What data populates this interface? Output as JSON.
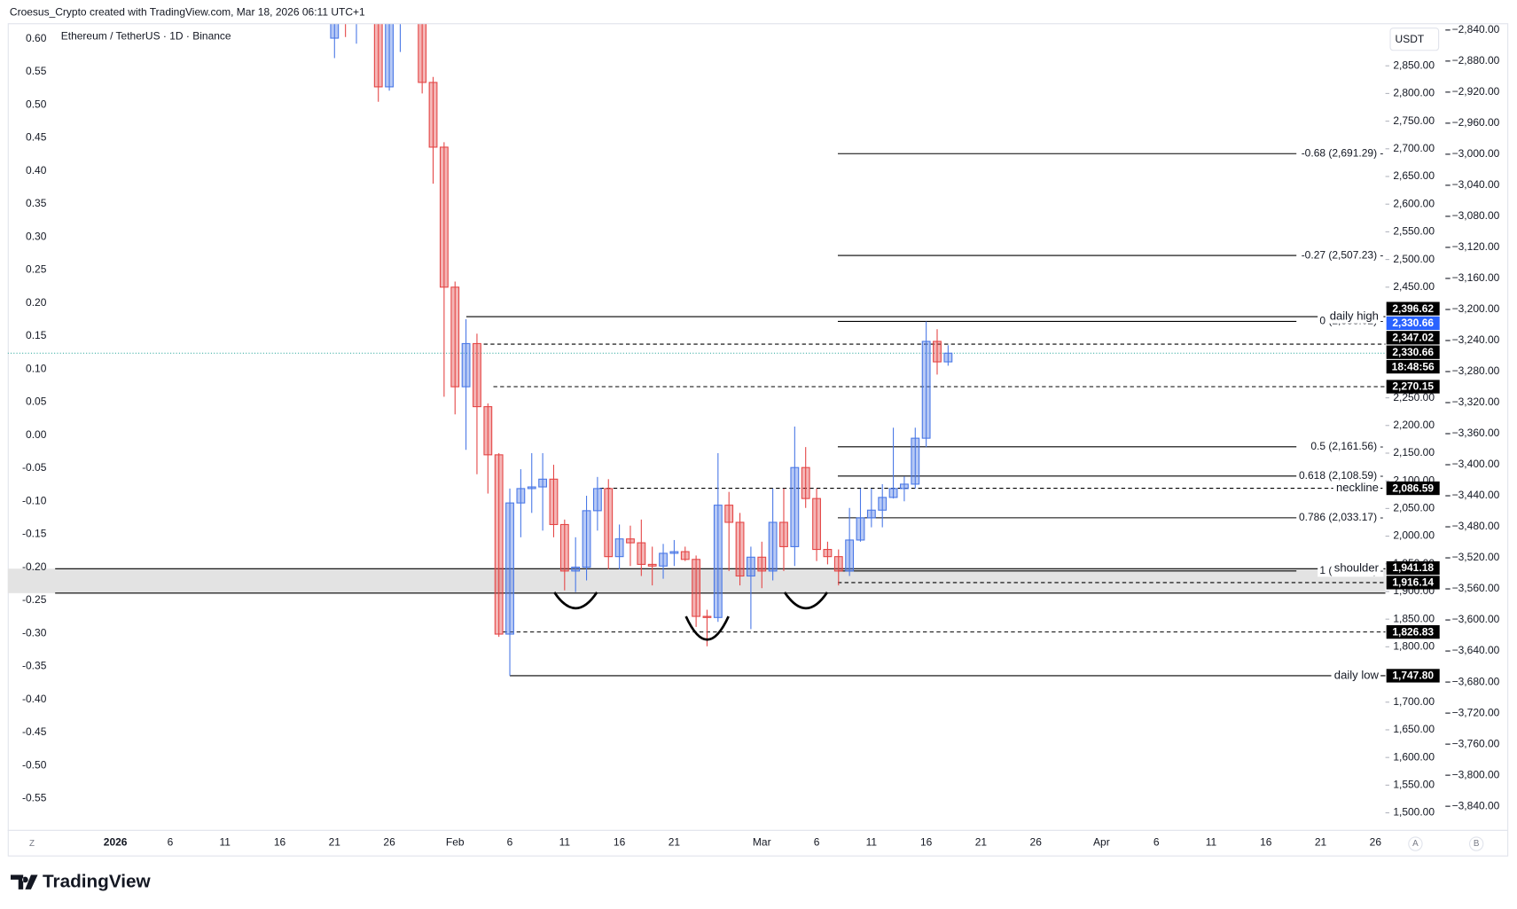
{
  "header": {
    "credit": "Croesus_Crypto created with TradingView.com, Mar 18, 2026 06:11 UTC+1",
    "brand": "TradingView",
    "corner_left": "Z",
    "corner_a": "A",
    "corner_b": "B"
  },
  "chart_data": {
    "type": "candlestick",
    "title": "Ethereum / TetherUS · 1D · Binance",
    "currency": "USDT",
    "up_color": "#4a78e6",
    "down_color": "#e44646",
    "xlim": [
      "2025-12-22",
      "2026-04-27"
    ],
    "ylim": [
      1468.4,
      2925.2
    ],
    "x": [
      "2026-01-21",
      "2026-01-22",
      "2026-01-23",
      "2026-01-24",
      "2026-01-25",
      "2026-01-26",
      "2026-01-27",
      "2026-01-28",
      "2026-01-29",
      "2026-01-30",
      "2026-01-31",
      "2026-02-01",
      "2026-02-02",
      "2026-02-03",
      "2026-02-04",
      "2026-02-05",
      "2026-02-06",
      "2026-02-07",
      "2026-02-08",
      "2026-02-09",
      "2026-02-10",
      "2026-02-11",
      "2026-02-12",
      "2026-02-13",
      "2026-02-14",
      "2026-02-15",
      "2026-02-16",
      "2026-02-17",
      "2026-02-18",
      "2026-02-19",
      "2026-02-20",
      "2026-02-21",
      "2026-02-22",
      "2026-02-23",
      "2026-02-24",
      "2026-02-25",
      "2026-02-26",
      "2026-02-27",
      "2026-02-28",
      "2026-03-01",
      "2026-03-02",
      "2026-03-03",
      "2026-03-04",
      "2026-03-05",
      "2026-03-06",
      "2026-03-07",
      "2026-03-08",
      "2026-03-09",
      "2026-03-10",
      "2026-03-11",
      "2026-03-12",
      "2026-03-13",
      "2026-03-14",
      "2026-03-15",
      "2026-03-16",
      "2026-03-17",
      "2026-03-18"
    ],
    "open": [
      2900,
      2950,
      2930,
      2980,
      2930,
      2812,
      2930,
      2980,
      2990,
      2820,
      2703,
      2450,
      2270,
      2348,
      2234,
      2147,
      1823,
      2060,
      2086,
      2089,
      2103,
      2021,
      1937,
      1944,
      2046,
      2086,
      1963,
      1995,
      1988,
      1949,
      1946,
      1969,
      1972,
      1958,
      1855,
      1853,
      2056,
      2025,
      1928,
      1962,
      1937,
      2025,
      1981,
      2124,
      2068,
      1976,
      1963,
      1937,
      1993,
      2033,
      2047,
      2070,
      2086,
      2094,
      2177,
      2352,
      2315
    ],
    "high": [
      2980,
      2990,
      2990,
      3010,
      2960,
      2950,
      3000,
      3020,
      3000,
      2830,
      2712,
      2460,
      2392,
      2366,
      2240,
      2150,
      2086,
      2121,
      2150,
      2150,
      2129,
      2030,
      1998,
      2073,
      2107,
      2103,
      2021,
      2019,
      2030,
      1981,
      1986,
      1993,
      1981,
      1965,
      1867,
      2150,
      2080,
      2042,
      1981,
      1990,
      2086,
      2086,
      2198,
      2161,
      2086,
      1990,
      1976,
      2051,
      2086,
      2086,
      2094,
      2196,
      2108,
      2196,
      2388,
      2374,
      2345
    ],
    "low": [
      2864,
      2902,
      2890,
      2940,
      2785,
      2805,
      2875,
      2940,
      2800,
      2637,
      2252,
      2220,
      2156,
      2112,
      2077,
      1818,
      1747.8,
      1998,
      2042,
      2010,
      1998,
      1902,
      1899,
      1920,
      2010,
      1940,
      1940,
      1946,
      1928,
      1911,
      1923,
      1946,
      1955,
      1836,
      1801,
      1845,
      1937,
      1911,
      1832,
      1906,
      1920,
      1937,
      1946,
      2051,
      1955,
      1949,
      1911,
      1928,
      1990,
      2016,
      2016,
      2068,
      2063,
      2086,
      2161,
      2292,
      2308
    ],
    "close": [
      2950,
      2930,
      2980,
      2930,
      2812,
      2930,
      2980,
      3000,
      2820,
      2703,
      2450,
      2270,
      2348,
      2234,
      2147,
      1823,
      2060,
      2086,
      2089,
      2103,
      2021,
      1937,
      1944,
      2046,
      2086,
      1963,
      1995,
      1988,
      1949,
      1946,
      1969,
      1972,
      1958,
      1855,
      1853,
      2056,
      2025,
      1928,
      1962,
      1937,
      2025,
      1981,
      2124,
      2068,
      1976,
      1963,
      1937,
      1993,
      2033,
      2047,
      2070,
      2086,
      2094,
      2177,
      2352,
      2315,
      2330.66
    ],
    "xticks": [
      {
        "value": "2026-01-01",
        "label": "2026"
      },
      {
        "value": "2026-01-06",
        "label": "6"
      },
      {
        "value": "2026-01-11",
        "label": "11"
      },
      {
        "value": "2026-01-16",
        "label": "16"
      },
      {
        "value": "2026-01-21",
        "label": "21"
      },
      {
        "value": "2026-01-26",
        "label": "26"
      },
      {
        "value": "2026-02-01",
        "label": "Feb"
      },
      {
        "value": "2026-02-06",
        "label": "6"
      },
      {
        "value": "2026-02-11",
        "label": "11"
      },
      {
        "value": "2026-02-16",
        "label": "16"
      },
      {
        "value": "2026-02-21",
        "label": "21"
      },
      {
        "value": "2026-03-01",
        "label": "Mar"
      },
      {
        "value": "2026-03-06",
        "label": "6"
      },
      {
        "value": "2026-03-11",
        "label": "11"
      },
      {
        "value": "2026-03-16",
        "label": "16"
      },
      {
        "value": "2026-03-21",
        "label": "21"
      },
      {
        "value": "2026-03-26",
        "label": "26"
      },
      {
        "value": "2026-04-01",
        "label": "Apr"
      },
      {
        "value": "2026-04-06",
        "label": "6"
      },
      {
        "value": "2026-04-11",
        "label": "11"
      },
      {
        "value": "2026-04-16",
        "label": "16"
      },
      {
        "value": "2026-04-21",
        "label": "21"
      },
      {
        "value": "2026-04-26",
        "label": "26"
      }
    ],
    "yticks": [
      {
        "value": 2850,
        "label": "2,850.00"
      },
      {
        "value": 2800,
        "label": "2,800.00"
      },
      {
        "value": 2750,
        "label": "2,750.00"
      },
      {
        "value": 2700,
        "label": "2,700.00"
      },
      {
        "value": 2650,
        "label": "2,650.00"
      },
      {
        "value": 2600,
        "label": "2,600.00"
      },
      {
        "value": 2550,
        "label": "2,550.00"
      },
      {
        "value": 2500,
        "label": "2,500.00"
      },
      {
        "value": 2450,
        "label": "2,450.00"
      },
      {
        "value": 2250,
        "label": "2,250.00"
      },
      {
        "value": 2200,
        "label": "2,200.00"
      },
      {
        "value": 2150,
        "label": "2,150.00"
      },
      {
        "value": 2100,
        "label": "2,100.00"
      },
      {
        "value": 2050,
        "label": "2,050.00"
      },
      {
        "value": 2000,
        "label": "2,000.00"
      },
      {
        "value": 1950,
        "label": "1,950.00"
      },
      {
        "value": 1900,
        "label": "1,900.00"
      },
      {
        "value": 1850,
        "label": "1,850.00"
      },
      {
        "value": 1800,
        "label": "1,800.00"
      },
      {
        "value": 1700,
        "label": "1,700.00"
      },
      {
        "value": 1650,
        "label": "1,650.00"
      },
      {
        "value": 1600,
        "label": "1,600.00"
      },
      {
        "value": 1550,
        "label": "1,550.00"
      },
      {
        "value": 1500,
        "label": "1,500.00"
      }
    ],
    "y2lim": [
      -0.598,
      0.622
    ],
    "y2ticks": [
      {
        "value": 0.6,
        "label": "0.60"
      },
      0.55,
      {
        "value": 0.5,
        "label": "0.50"
      },
      0.45,
      {
        "value": 0.4,
        "label": "0.40"
      },
      0.35,
      {
        "value": 0.3,
        "label": "0.30"
      },
      0.25,
      {
        "value": 0.2,
        "label": "0.20"
      },
      0.15,
      {
        "value": 0.1,
        "label": "0.10"
      },
      0.05,
      {
        "value": 0,
        "label": "0.00"
      },
      -0.05,
      {
        "value": -0.1,
        "label": "-0.10"
      },
      -0.15,
      {
        "value": -0.2,
        "label": "-0.20"
      },
      -0.25,
      {
        "value": -0.3,
        "label": "-0.30"
      },
      -0.35,
      {
        "value": -0.4,
        "label": "-0.40"
      },
      -0.45,
      {
        "value": -0.5,
        "label": "-0.50"
      },
      -0.55
    ],
    "y3lim": [
      -3871,
      -2832.5
    ],
    "y3ticks": [
      {
        "value": -2840,
        "label": "−2,840.00"
      },
      {
        "value": -2880,
        "label": "−2,880.00"
      },
      {
        "value": -2920,
        "label": "−2,920.00"
      },
      {
        "value": -2960,
        "label": "−2,960.00"
      },
      {
        "value": -3000,
        "label": "−3,000.00"
      },
      {
        "value": -3040,
        "label": "−3,040.00"
      },
      {
        "value": -3080,
        "label": "−3,080.00"
      },
      {
        "value": -3120,
        "label": "−3,120.00"
      },
      {
        "value": -3160,
        "label": "−3,160.00"
      },
      {
        "value": -3200,
        "label": "−3,200.00"
      },
      {
        "value": -3240,
        "label": "−3,240.00"
      },
      {
        "value": -3280,
        "label": "−3,280.00"
      },
      {
        "value": -3320,
        "label": "−3,320.00"
      },
      {
        "value": -3360,
        "label": "−3,360.00"
      },
      {
        "value": -3400,
        "label": "−3,400.00"
      },
      {
        "value": -3440,
        "label": "−3,440.00"
      },
      {
        "value": -3480,
        "label": "−3,480.00"
      },
      {
        "value": -3520,
        "label": "−3,520.00"
      },
      {
        "value": -3560,
        "label": "−3,560.00"
      },
      {
        "value": -3600,
        "label": "−3,600.00"
      },
      {
        "value": -3640,
        "label": "−3,640.00"
      },
      {
        "value": -3680,
        "label": "−3,680.00"
      },
      {
        "value": -3720,
        "label": "−3,720.00"
      },
      {
        "value": -3760,
        "label": "−3,760.00"
      },
      {
        "value": -3800,
        "label": "−3,800.00"
      },
      {
        "value": -3840,
        "label": "−3,840.00"
      }
    ],
    "zone": [
      1897,
      1941.18
    ],
    "levels": [
      {
        "price": 2396.62,
        "label": "2,396.62",
        "note": "daily high",
        "style": "solid"
      },
      {
        "price": 2347.02,
        "label": "2,347.02",
        "style": "dashed"
      },
      {
        "price": 2270.15,
        "label": "2,270.15",
        "style": "dashed"
      },
      {
        "price": 2086.59,
        "label": "2,086.59",
        "note": "neckline",
        "style": "dashed"
      },
      {
        "price": 1941.18,
        "label": "1,941.18",
        "note": "shoulder",
        "style": "solid"
      },
      {
        "price": 1916.14,
        "label": "1,916.14",
        "style": "dashed"
      },
      {
        "price": 1826.83,
        "label": "1,826.83",
        "style": "dashed"
      },
      {
        "price": 1747.8,
        "label": "1,747.80",
        "note": "daily low",
        "style": "solid"
      }
    ],
    "fib": [
      {
        "price": 2691.29,
        "label": "-0.68 (2,691.29) -"
      },
      {
        "price": 2507.23,
        "label": "-0.27 (2,507.23) -"
      },
      {
        "price": 2388.02,
        "label": "0 (2,388.02) -"
      },
      {
        "price": 2161.56,
        "label": "0.5 (2,161.56) -"
      },
      {
        "price": 2108.59,
        "label": "0.618 (2,108.59) -"
      },
      {
        "price": 2033.17,
        "label": "0.786 (2,033.17) -"
      },
      {
        "price": 1937.1,
        "label": "1 (1,937.10) -"
      }
    ],
    "last_price": 2330.66,
    "last_price_label": "2,330.66",
    "last_color": "#2962ff",
    "countdown": "18:48:56"
  }
}
